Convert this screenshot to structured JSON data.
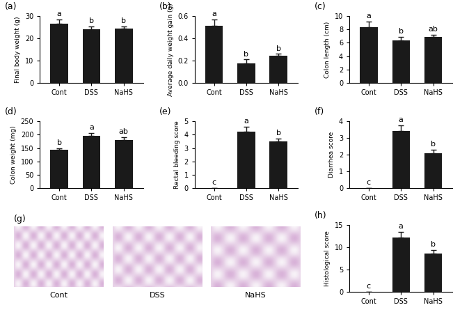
{
  "chart_data": [
    {
      "type": "bar",
      "title": "(a)",
      "y_label": "Final body weight (g)",
      "categories": [
        "Cont",
        "DSS",
        "NaHS"
      ],
      "values": [
        26.5,
        24.0,
        24.3
      ],
      "errors": [
        1.8,
        1.2,
        1.0
      ],
      "annotations": [
        "a",
        "b",
        "b"
      ],
      "color": "#1a1a1a",
      "ylim": [
        0,
        30
      ],
      "yticks": [
        0,
        10,
        20,
        30
      ]
    },
    {
      "type": "bar",
      "title": "(b)",
      "y_label": "Average daily weight gain (g)",
      "categories": [
        "Cont",
        "DSS",
        "NaHS"
      ],
      "values": [
        0.51,
        0.175,
        0.245
      ],
      "errors": [
        0.06,
        0.035,
        0.015
      ],
      "annotations": [
        "a",
        "b",
        "b"
      ],
      "color": "#1a1a1a",
      "ylim": [
        0,
        0.6
      ],
      "yticks": [
        {
          "value": 0,
          "label": "0.0"
        },
        0.2,
        0.4,
        0.6
      ]
    },
    {
      "type": "bar",
      "title": "(c)",
      "y_label": "Colon length (cm)",
      "categories": [
        "Cont",
        "DSS",
        "NaHS"
      ],
      "values": [
        8.3,
        6.4,
        6.9
      ],
      "errors": [
        0.9,
        0.5,
        0.3
      ],
      "annotations": [
        "a",
        "b",
        "ab"
      ],
      "color": "#1a1a1a",
      "ylim": [
        0,
        10
      ],
      "yticks": [
        0,
        2,
        4,
        6,
        8,
        10
      ]
    },
    {
      "type": "bar",
      "title": "(d)",
      "y_label": "Colon weight (mg)",
      "categories": [
        "Cont",
        "DSS",
        "NaHS"
      ],
      "values": [
        143,
        195,
        181
      ],
      "errors": [
        7,
        12,
        10
      ],
      "annotations": [
        "b",
        "a",
        "ab"
      ],
      "color": "#1a1a1a",
      "ylim": [
        0,
        250
      ],
      "yticks": [
        0,
        50,
        100,
        150,
        200,
        250
      ]
    },
    {
      "type": "bar",
      "title": "(e)",
      "y_label": "Rectal bleeding score",
      "categories": [
        "Cont",
        "DSS",
        "NaHS"
      ],
      "values": [
        0,
        4.2,
        3.5
      ],
      "errors": [
        0,
        0.4,
        0.2
      ],
      "annotations": [
        "c",
        "a",
        "b"
      ],
      "color": "#1a1a1a",
      "ylim": [
        0,
        5
      ],
      "yticks": [
        0,
        1,
        2,
        3,
        4,
        5
      ]
    },
    {
      "type": "bar",
      "title": "(f)",
      "y_label": "Diarrhea score",
      "categories": [
        "Cont",
        "DSS",
        "NaHS"
      ],
      "values": [
        0,
        3.4,
        2.1
      ],
      "errors": [
        0,
        0.35,
        0.2
      ],
      "annotations": [
        "c",
        "a",
        "b"
      ],
      "color": "#1a1a1a",
      "ylim": [
        0,
        4
      ],
      "yticks": [
        0,
        1,
        2,
        3,
        4
      ]
    },
    {
      "type": "bar",
      "title": "(h)",
      "y_label": "Histological score",
      "categories": [
        "Cont",
        "DSS",
        "NaHS"
      ],
      "values": [
        0,
        12.2,
        8.6
      ],
      "errors": [
        0,
        1.3,
        0.8
      ],
      "annotations": [
        "c",
        "a",
        "b"
      ],
      "color": "#1a1a1a",
      "ylim": [
        0,
        15
      ],
      "yticks": [
        0,
        5,
        10,
        15
      ]
    }
  ],
  "images": {
    "title": "(g)",
    "labels": [
      "Cont",
      "DSS",
      "NaHS"
    ]
  }
}
